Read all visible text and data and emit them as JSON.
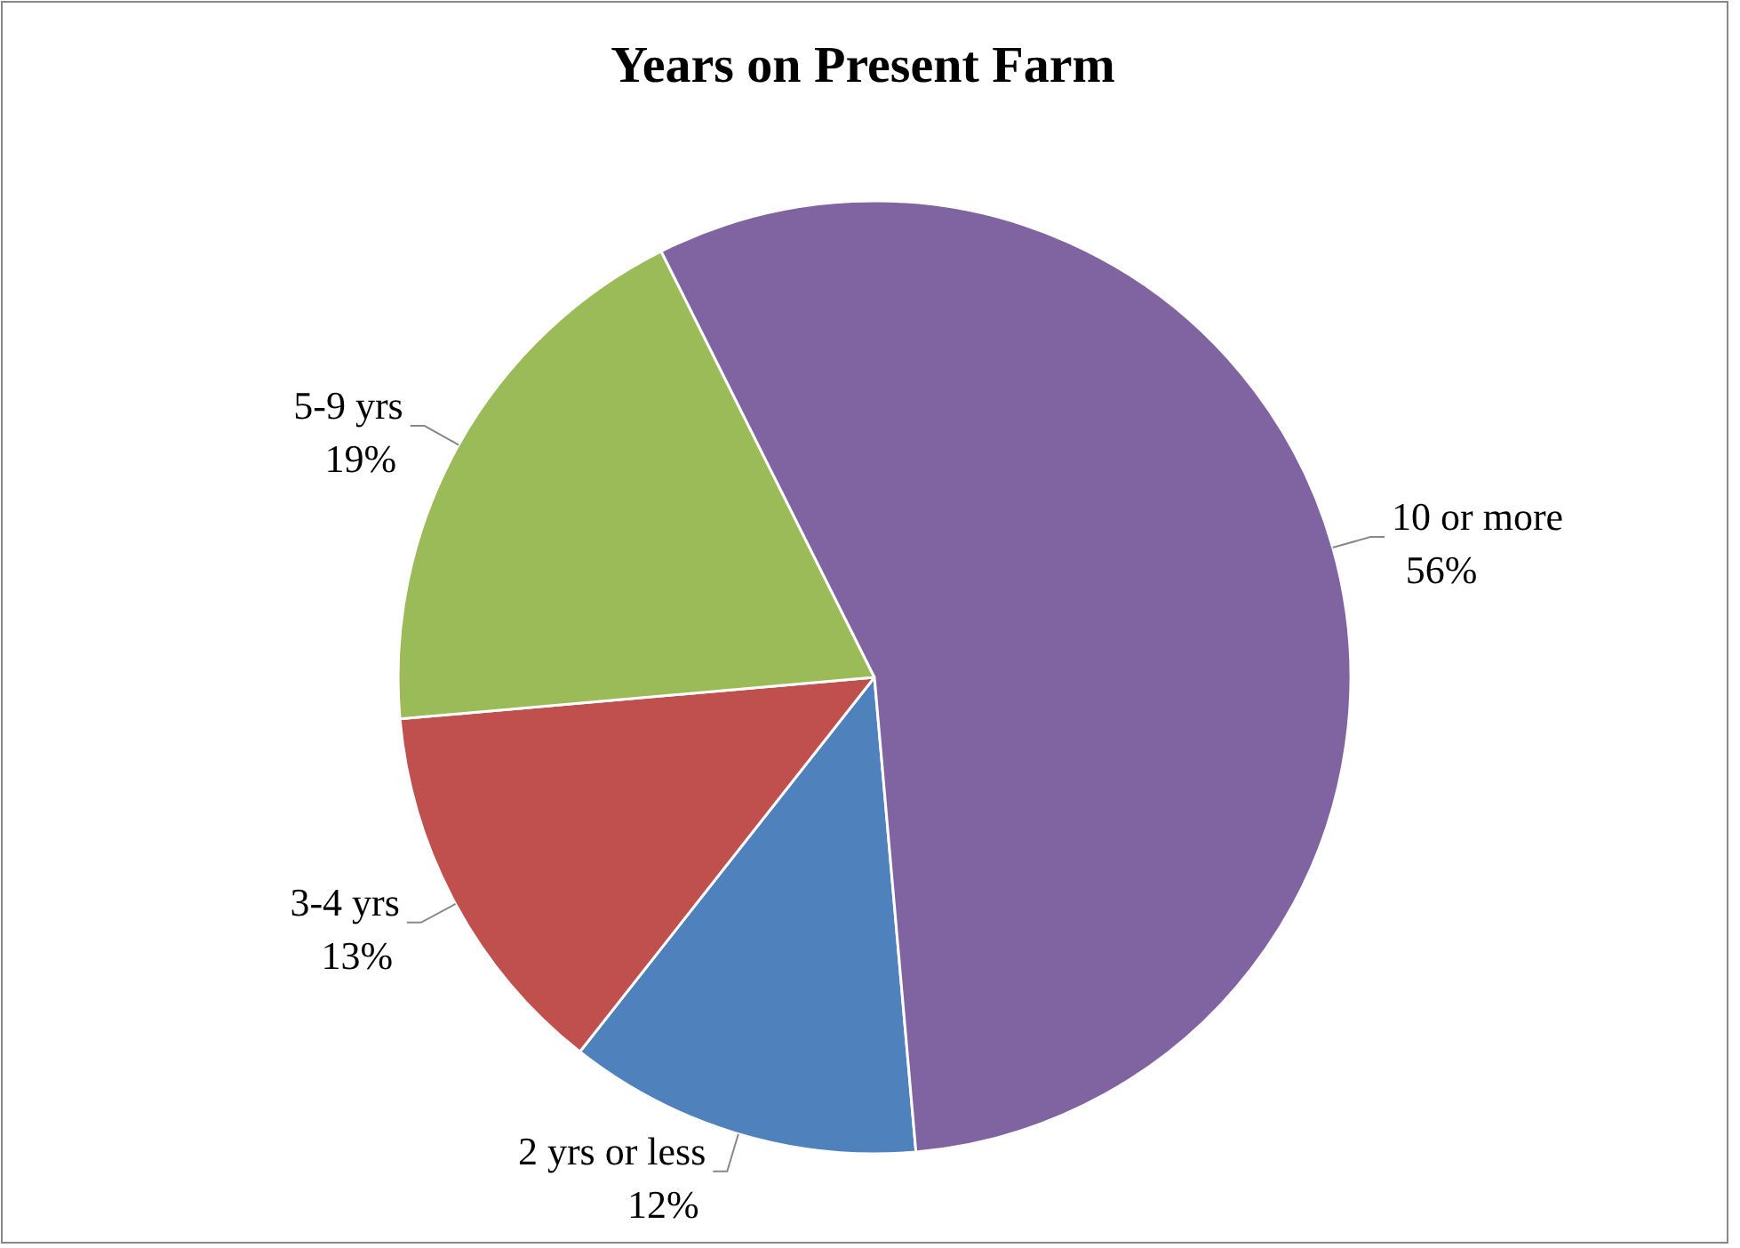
{
  "chart_data": {
    "type": "pie",
    "title": "Years on Present Farm",
    "categories": [
      "2 yrs or less",
      "3-4 yrs",
      "5-9 yrs",
      "10 or more"
    ],
    "values": [
      12,
      13,
      19,
      56
    ],
    "colors": [
      "#4f81bd",
      "#c0504d",
      "#9bbb59",
      "#8064a2"
    ],
    "value_labels": [
      "12%",
      "13%",
      "19%",
      "56%"
    ]
  }
}
